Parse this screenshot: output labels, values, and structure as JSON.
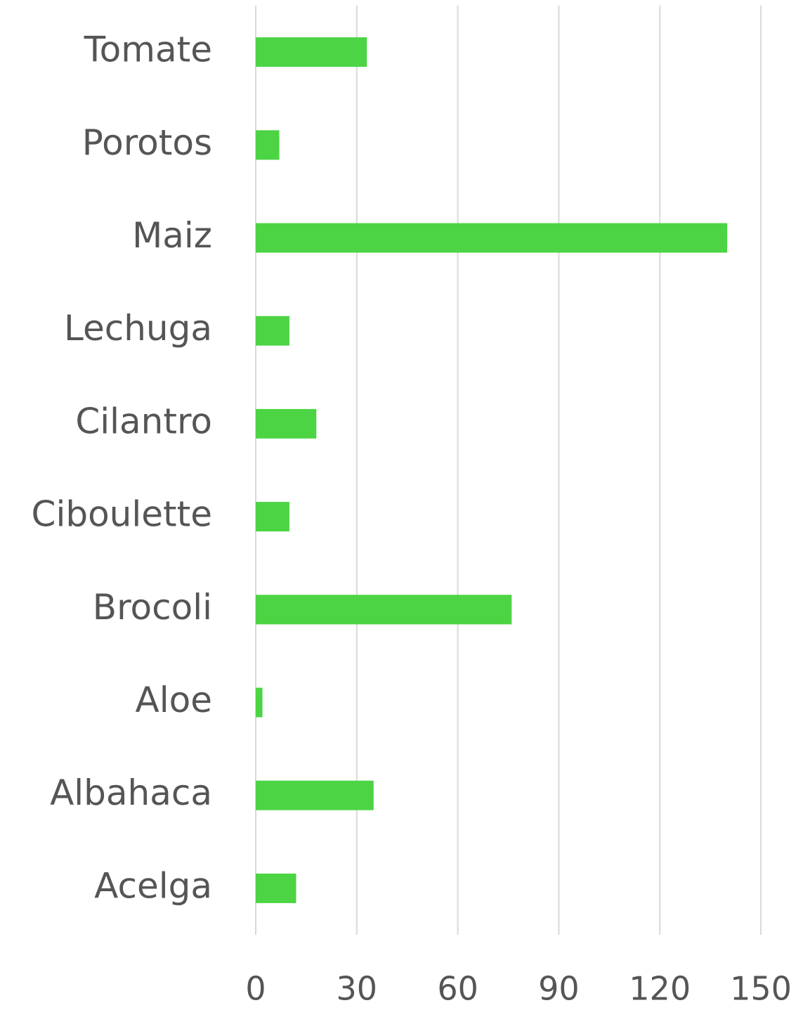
{
  "chart_data": {
    "type": "barh",
    "categories": [
      "Tomate",
      "Porotos",
      "Maiz",
      "Lechuga",
      "Cilantro",
      "Ciboulette",
      "Brocoli",
      "Aloe",
      "Albahaca",
      "Acelga"
    ],
    "values": [
      33,
      7,
      140,
      10,
      18,
      10,
      76,
      2,
      35,
      12
    ],
    "color": "#4cd444",
    "xlim": [
      0,
      150
    ],
    "xticks": [
      0,
      30,
      60,
      90,
      120,
      150
    ],
    "grid": true
  }
}
